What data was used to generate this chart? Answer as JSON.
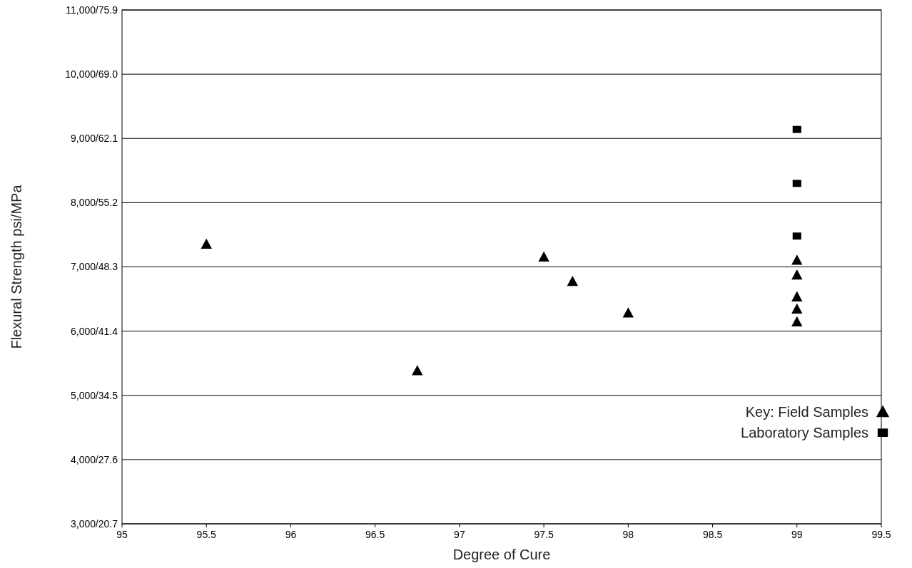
{
  "chart_data": {
    "type": "scatter",
    "xlabel": "Degree of Cure",
    "ylabel": "Flexural Strength psi/MPa",
    "legend_title": "Key:",
    "legend": "bottom right",
    "grid": "y",
    "xlim": [
      95,
      99.5
    ],
    "xticks": [
      95,
      95.5,
      96,
      96.5,
      97,
      97.5,
      98,
      98.5,
      99,
      99.5
    ],
    "ylim": [
      3000,
      11000
    ],
    "yticks": [
      {
        "value": 3000,
        "label": "3,000"
      },
      {
        "value": 4000,
        "label": "4,000"
      },
      {
        "value": 5000,
        "label": "5,000"
      },
      {
        "value": 6000,
        "label": "6,000"
      },
      {
        "value": 7000,
        "label": "7,000"
      },
      {
        "value": 8000,
        "label": "8,000"
      },
      {
        "value": 9000,
        "label": "9,000"
      },
      {
        "value": 10000,
        "label": "10,000"
      },
      {
        "value": 11000,
        "label": "11,000"
      }
    ],
    "y2lim": [
      20.7,
      75.9
    ],
    "y2ticks": [
      {
        "value": 20.7,
        "label": "/20.7"
      },
      {
        "value": 27.6,
        "label": "/27.6"
      },
      {
        "value": 34.5,
        "label": "/34.5"
      },
      {
        "value": 41.4,
        "label": "/41.4"
      },
      {
        "value": 48.3,
        "label": "/48.3"
      },
      {
        "value": 55.2,
        "label": "/55.2"
      },
      {
        "value": 62.1,
        "label": "/62.1"
      },
      {
        "value": 69.0,
        "label": "/69.0"
      },
      {
        "value": 75.9,
        "label": "/75.9"
      }
    ],
    "series": [
      {
        "name": "Field Samples",
        "color": "#000000",
        "marker": "triangle",
        "x": [
          95.5,
          96.75,
          97.5,
          97.67,
          98,
          99,
          99,
          99,
          99,
          99
        ],
        "values": [
          7350,
          5380,
          7150,
          6770,
          6280,
          7100,
          6870,
          6530,
          6340,
          6140
        ]
      },
      {
        "name": "Laboratory Samples",
        "color": "#000000",
        "marker": "square",
        "x": [
          99,
          99,
          99
        ],
        "values": [
          9140,
          8300,
          7480
        ]
      }
    ]
  }
}
